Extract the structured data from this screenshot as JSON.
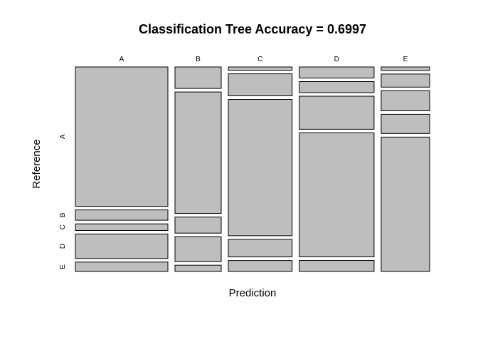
{
  "chart_data": {
    "type": "mosaic",
    "title": "Classification Tree Accuracy = 0.6997",
    "xlabel": "Prediction",
    "ylabel": "Reference",
    "prediction_levels": [
      "A",
      "B",
      "C",
      "D",
      "E"
    ],
    "reference_levels": [
      "A",
      "B",
      "C",
      "D",
      "E"
    ],
    "column_shares": [
      0.42,
      0.21,
      0.29,
      0.34,
      0.22
    ],
    "row_shares": {
      "A": [
        0.74,
        0.12,
        0.015,
        0.04,
        0.02
      ],
      "B": [
        0.055,
        0.68,
        0.1,
        0.04,
        0.075
      ],
      "C": [
        0.035,
        0.09,
        0.62,
        0.12,
        0.115
      ],
      "D": [
        0.13,
        0.14,
        0.08,
        0.45,
        0.11
      ],
      "E": [
        0.05,
        0.035,
        0.05,
        0.04,
        0.77
      ]
    },
    "colors": {
      "tile_fill": "#bebebe",
      "tile_stroke": "#000000"
    }
  }
}
